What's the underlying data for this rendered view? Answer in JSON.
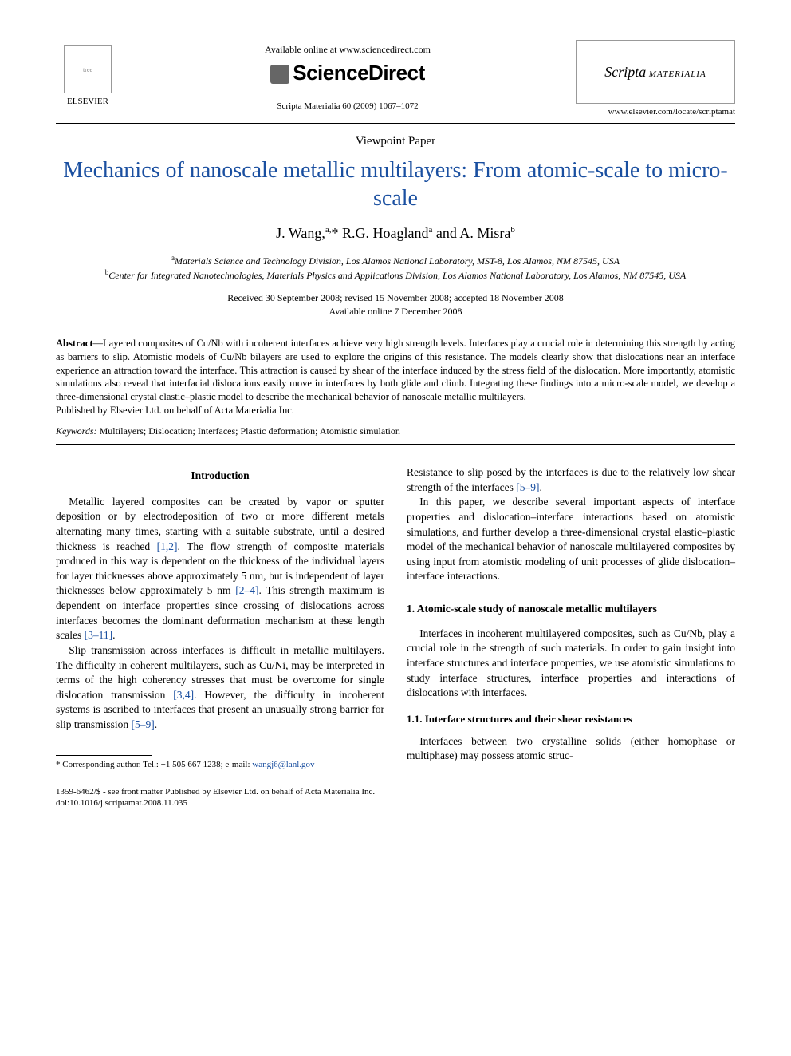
{
  "header": {
    "elsevier_label": "ELSEVIER",
    "available_online": "Available online at www.sciencedirect.com",
    "sciencedirect": "ScienceDirect",
    "journal_cite": "Scripta Materialia 60 (2009) 1067–1072",
    "journal_logo_line1": "Scripta",
    "journal_logo_line2": "MATERIALIA",
    "journal_url": "www.elsevier.com/locate/scriptamat"
  },
  "paper": {
    "type": "Viewpoint Paper",
    "title": "Mechanics of nanoscale metallic multilayers: From atomic-scale to micro-scale",
    "authors_html": "J. Wang,<sup>a,</sup>* R.G. Hoagland<sup>a</sup> and A. Misra<sup>b</sup>",
    "affil_a": "Materials Science and Technology Division, Los Alamos National Laboratory, MST-8, Los Alamos, NM 87545, USA",
    "affil_b": "Center for Integrated Nanotechnologies, Materials Physics and Applications Division, Los Alamos National Laboratory, Los Alamos, NM 87545, USA",
    "dates_line1": "Received 30 September 2008; revised 15 November 2008; accepted 18 November 2008",
    "dates_line2": "Available online 7 December 2008"
  },
  "abstract": {
    "label": "Abstract",
    "text": "—Layered composites of Cu/Nb with incoherent interfaces achieve very high strength levels. Interfaces play a crucial role in determining this strength by acting as barriers to slip. Atomistic models of Cu/Nb bilayers are used to explore the origins of this resistance. The models clearly show that dislocations near an interface experience an attraction toward the interface. This attraction is caused by shear of the interface induced by the stress field of the dislocation. More importantly, atomistic simulations also reveal that interfacial dislocations easily move in interfaces by both glide and climb. Integrating these findings into a micro-scale model, we develop a three-dimensional crystal elastic–plastic model to describe the mechanical behavior of nanoscale metallic multilayers.",
    "publisher": "Published by Elsevier Ltd. on behalf of Acta Materialia Inc."
  },
  "keywords": {
    "label": "Keywords:",
    "text": " Multilayers; Dislocation; Interfaces; Plastic deformation; Atomistic simulation"
  },
  "body": {
    "intro_heading": "Introduction",
    "intro_p1a": "Metallic layered composites can be created by vapor or sputter deposition or by electrodeposition of two or more different metals alternating many times, starting with a suitable substrate, until a desired thickness is reached ",
    "intro_p1_cite1": "[1,2]",
    "intro_p1b": ". The flow strength of composite materials produced in this way is dependent on the thickness of the individual layers for layer thicknesses above approximately 5 nm, but is independent of layer thicknesses below approximately 5 nm ",
    "intro_p1_cite2": "[2–4]",
    "intro_p1c": ". This strength maximum is dependent on interface properties since crossing of dislocations across interfaces becomes the dominant deformation mechanism at these length scales ",
    "intro_p1_cite3": "[3–11]",
    "intro_p1d": ".",
    "intro_p2a": "Slip transmission across interfaces is difficult in metallic multilayers. The difficulty in coherent multilayers, such as Cu/Ni, may be interpreted in terms of the high coherency stresses that must be overcome for single dislocation transmission ",
    "intro_p2_cite1": "[3,4]",
    "intro_p2b": ". However, the difficulty in incoherent systems is ascribed to interfaces that present an unusually strong barrier for slip transmission ",
    "intro_p2_cite2": "[5–9]",
    "intro_p2c": ".",
    "col2_p1a": "Resistance to slip posed by the interfaces is due to the relatively low shear strength of the interfaces ",
    "col2_p1_cite1": "[5–9]",
    "col2_p1b": ".",
    "col2_p2": "In this paper, we describe several important aspects of interface properties and dislocation–interface interactions based on atomistic simulations, and further develop a three-dimensional crystal elastic–plastic model of the mechanical behavior of nanoscale multilayered composites by using input from atomistic modeling of unit processes of glide dislocation–interface interactions.",
    "sec1_heading": "1. Atomic-scale study of nanoscale metallic multilayers",
    "sec1_p1": "Interfaces in incoherent multilayered composites, such as Cu/Nb, play a crucial role in the strength of such materials. In order to gain insight into interface structures and interface properties, we use atomistic simulations to study interface structures, interface properties and interactions of dislocations with interfaces.",
    "sec11_heading": "1.1. Interface structures and their shear resistances",
    "sec11_p1": "Interfaces between two crystalline solids (either homophase or multiphase) may possess atomic struc-"
  },
  "footnote": {
    "label": "* Corresponding author. Tel.: +1 505 667 1238; e-mail: ",
    "email": "wangj6@lanl.gov"
  },
  "footer": {
    "line1": "1359-6462/$ - see front matter Published by Elsevier Ltd. on behalf of Acta Materialia Inc.",
    "line2": "doi:10.1016/j.scriptamat.2008.11.035"
  },
  "colors": {
    "title_color": "#1a4fa0",
    "link_color": "#1a4fa0",
    "text_color": "#000000",
    "background": "#ffffff"
  }
}
